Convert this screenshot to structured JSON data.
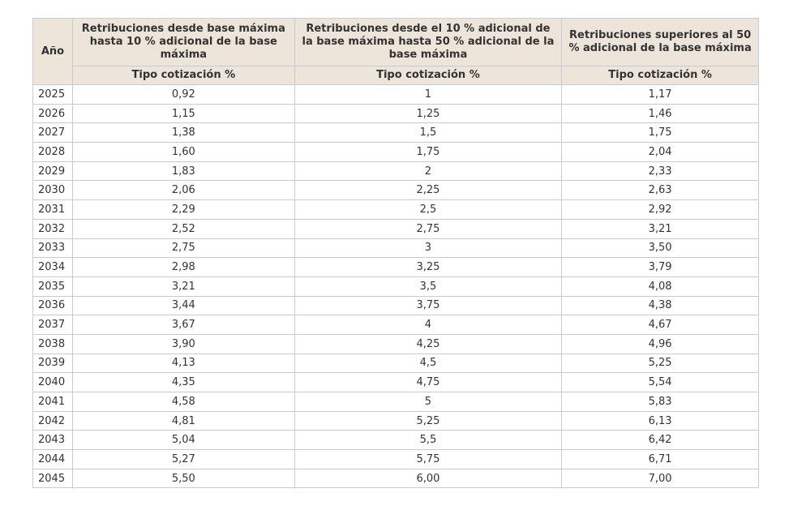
{
  "table": {
    "header": [
      "Año",
      "Retribuciones desde base máxima hasta 10 % adicional de la base máxima",
      "Retribuciones desde el 10 % adicional de la base máxima hasta 50 % adicional de la base máxima",
      "Retribuciones superiores al 50 % adicional de la base máxima"
    ],
    "subheader": [
      "Tipo cotización %",
      "Tipo cotización %",
      "Tipo cotización %"
    ],
    "rows": [
      [
        "2025",
        "0,92",
        "1",
        "1,17"
      ],
      [
        "2026",
        "1,15",
        "1,25",
        "1,46"
      ],
      [
        "2027",
        "1,38",
        "1,5",
        "1,75"
      ],
      [
        "2028",
        "1,60",
        "1,75",
        "2,04"
      ],
      [
        "2029",
        "1,83",
        "2",
        "2,33"
      ],
      [
        "2030",
        "2,06",
        "2,25",
        "2,63"
      ],
      [
        "2031",
        "2,29",
        "2,5",
        "2,92"
      ],
      [
        "2032",
        "2,52",
        "2,75",
        "3,21"
      ],
      [
        "2033",
        "2,75",
        "3",
        "3,50"
      ],
      [
        "2034",
        "2,98",
        "3,25",
        "3,79"
      ],
      [
        "2035",
        "3,21",
        "3,5",
        "4,08"
      ],
      [
        "2036",
        "3,44",
        "3,75",
        "4,38"
      ],
      [
        "2037",
        "3,67",
        "4",
        "4,67"
      ],
      [
        "2038",
        "3,90",
        "4,25",
        "4,96"
      ],
      [
        "2039",
        "4,13",
        "4,5",
        "5,25"
      ],
      [
        "2040",
        "4,35",
        "4,75",
        "5,54"
      ],
      [
        "2041",
        "4,58",
        "5",
        "5,83"
      ],
      [
        "2042",
        "4,81",
        "5,25",
        "6,13"
      ],
      [
        "2043",
        "5,04",
        "5,5",
        "6,42"
      ],
      [
        "2044",
        "5,27",
        "5,75",
        "6,71"
      ],
      [
        "2045",
        "5,50",
        "6,00",
        "7,00"
      ]
    ]
  }
}
